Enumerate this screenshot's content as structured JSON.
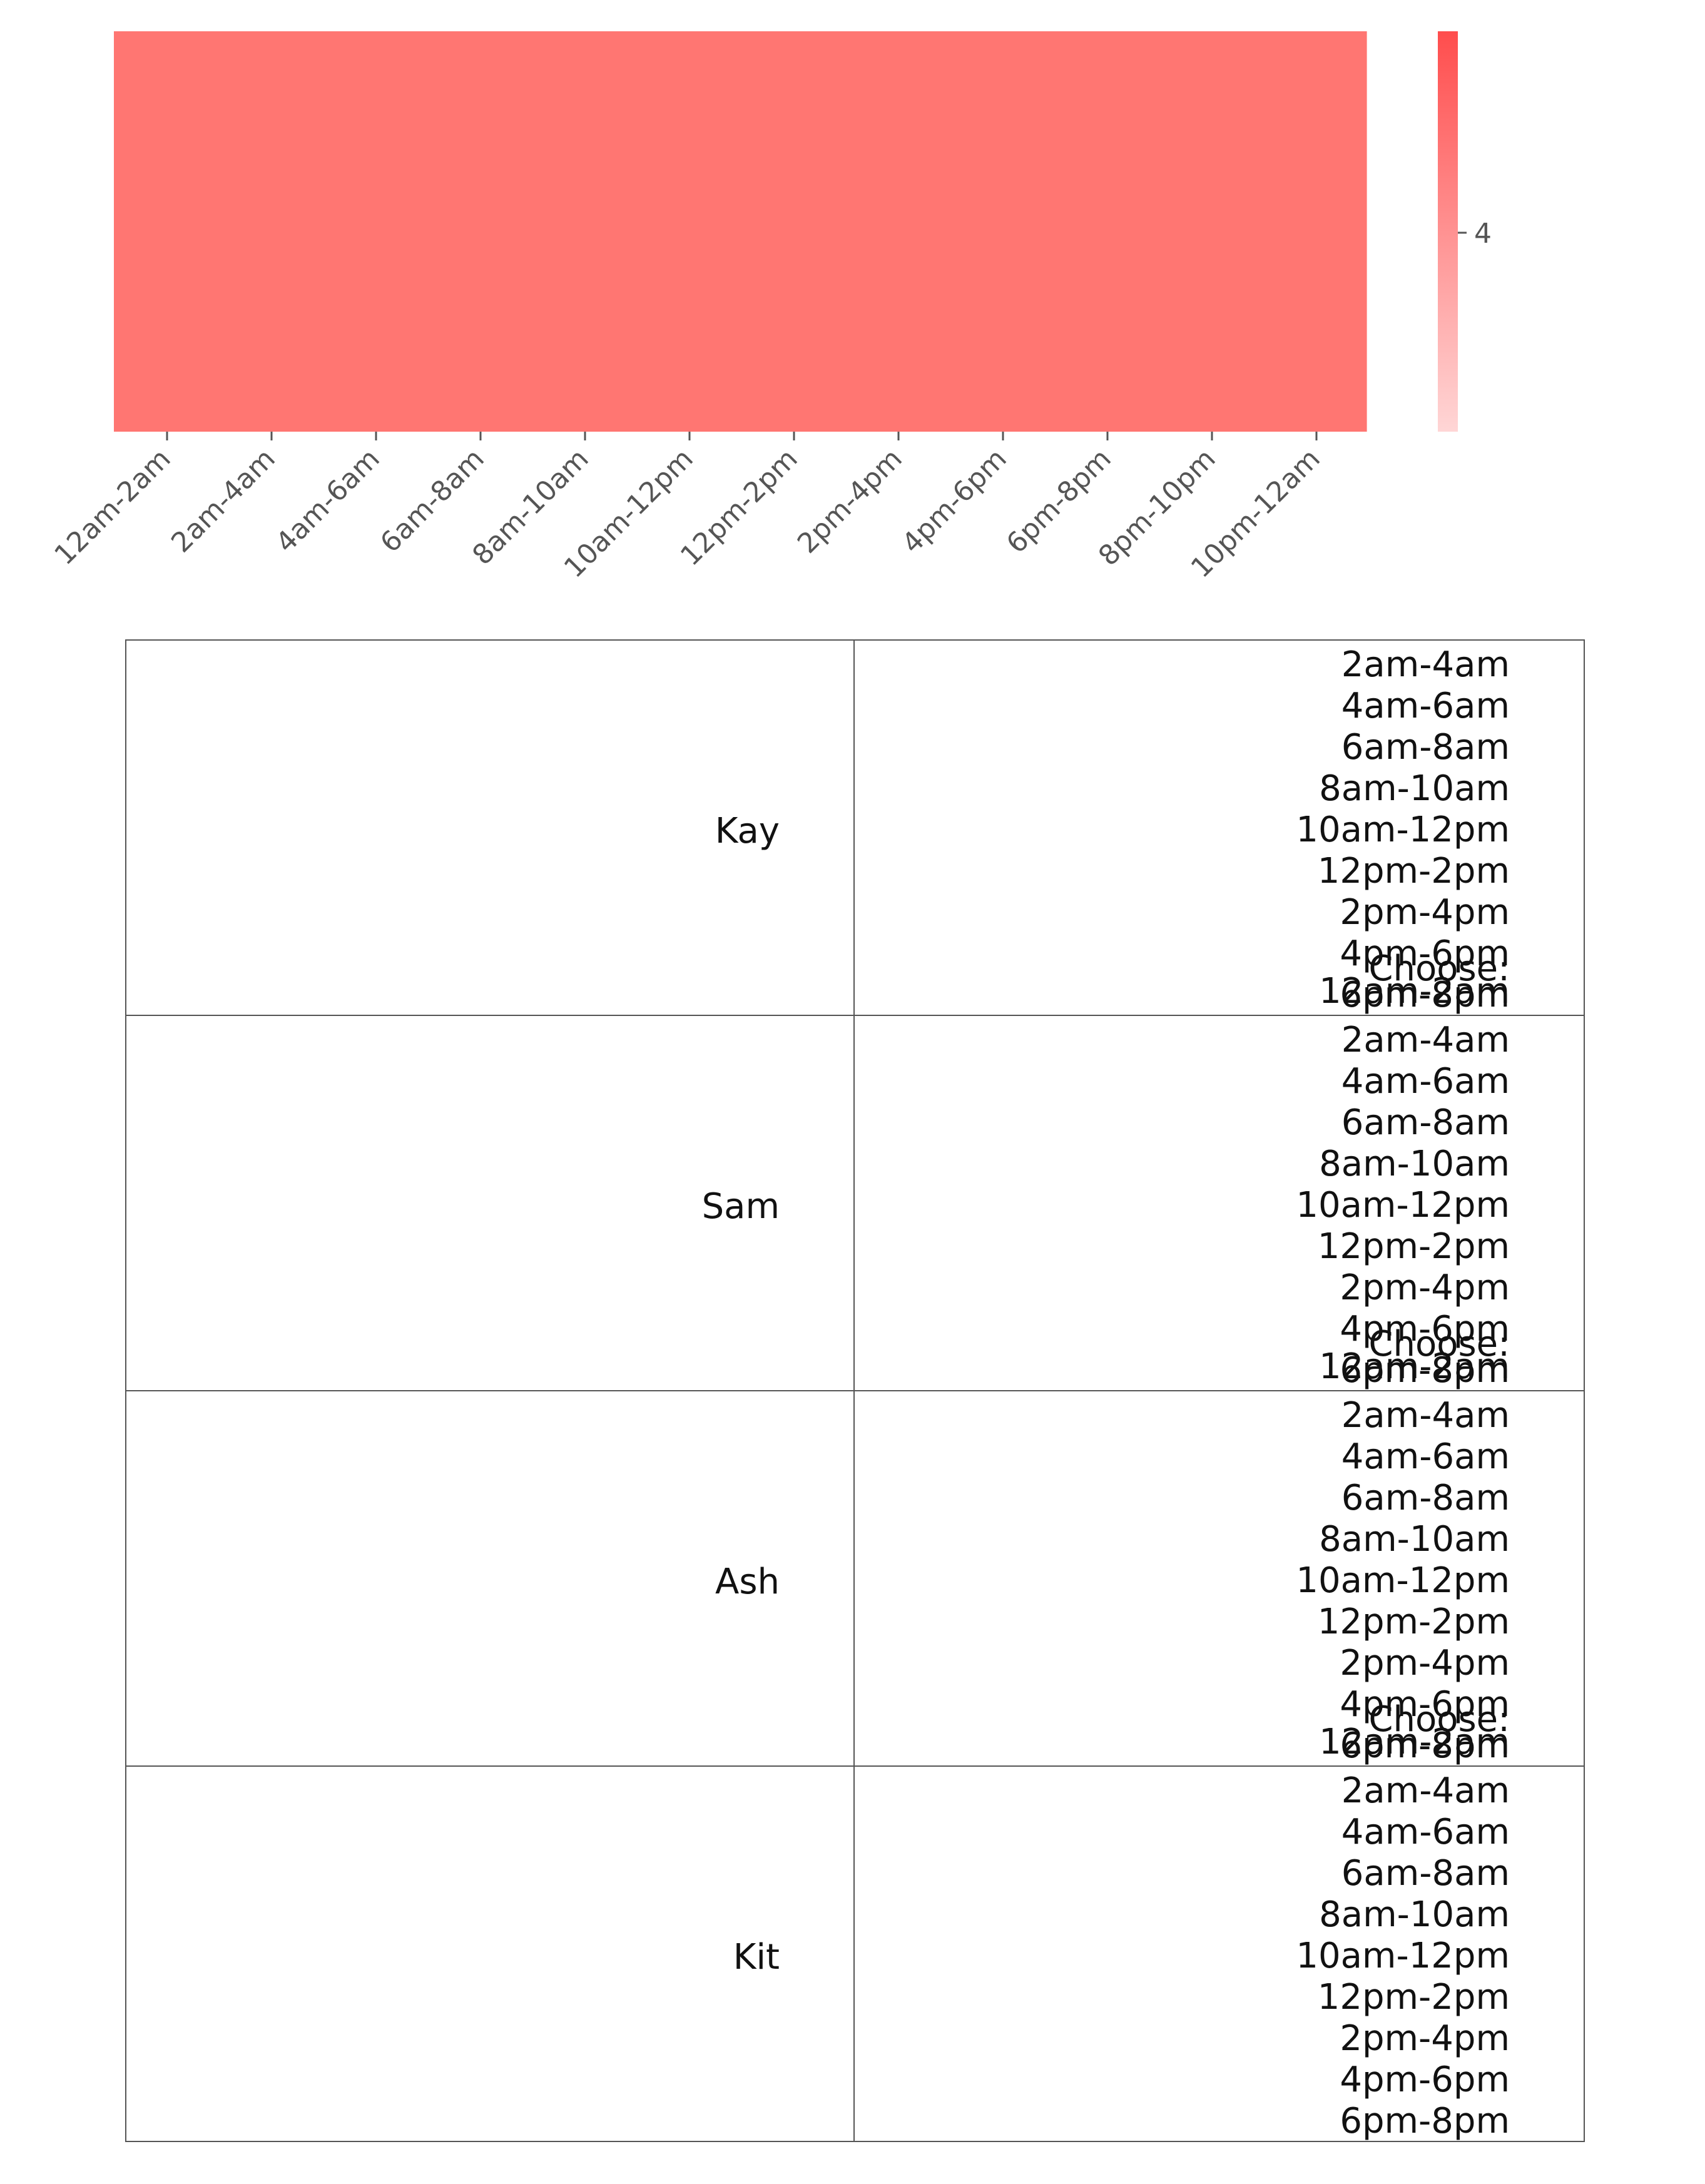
{
  "chart_data": {
    "type": "heatmap",
    "x_categories": [
      "12am-2am",
      "2am-4am",
      "4am-6am",
      "6am-8am",
      "8am-10am",
      "10am-12pm",
      "12pm-2pm",
      "2pm-4pm",
      "4pm-6pm",
      "6pm-8pm",
      "8pm-10pm",
      "10pm-12am"
    ],
    "values": [
      [
        4,
        4,
        4,
        4,
        4,
        4,
        4,
        4,
        4,
        4,
        4,
        4
      ]
    ],
    "colorbar": {
      "ticks": [
        4
      ],
      "colors": [
        "#ffd6d6",
        "#ff4d4d"
      ]
    },
    "cell_color": "#ff7672"
  },
  "table": {
    "choose_label": "Choose:",
    "rows": [
      {
        "name": "Kay",
        "selected": "12am-2am"
      },
      {
        "name": "Sam",
        "selected": "12am-2am"
      },
      {
        "name": "Ash",
        "selected": "12am-2am"
      },
      {
        "name": "Kit",
        "selected": ""
      }
    ],
    "options": [
      "2am-4am",
      "4am-6am",
      "6am-8am",
      "8am-10am",
      "10am-12pm",
      "12pm-2pm",
      "2pm-4pm",
      "4pm-6pm",
      "6pm-8pm"
    ]
  }
}
